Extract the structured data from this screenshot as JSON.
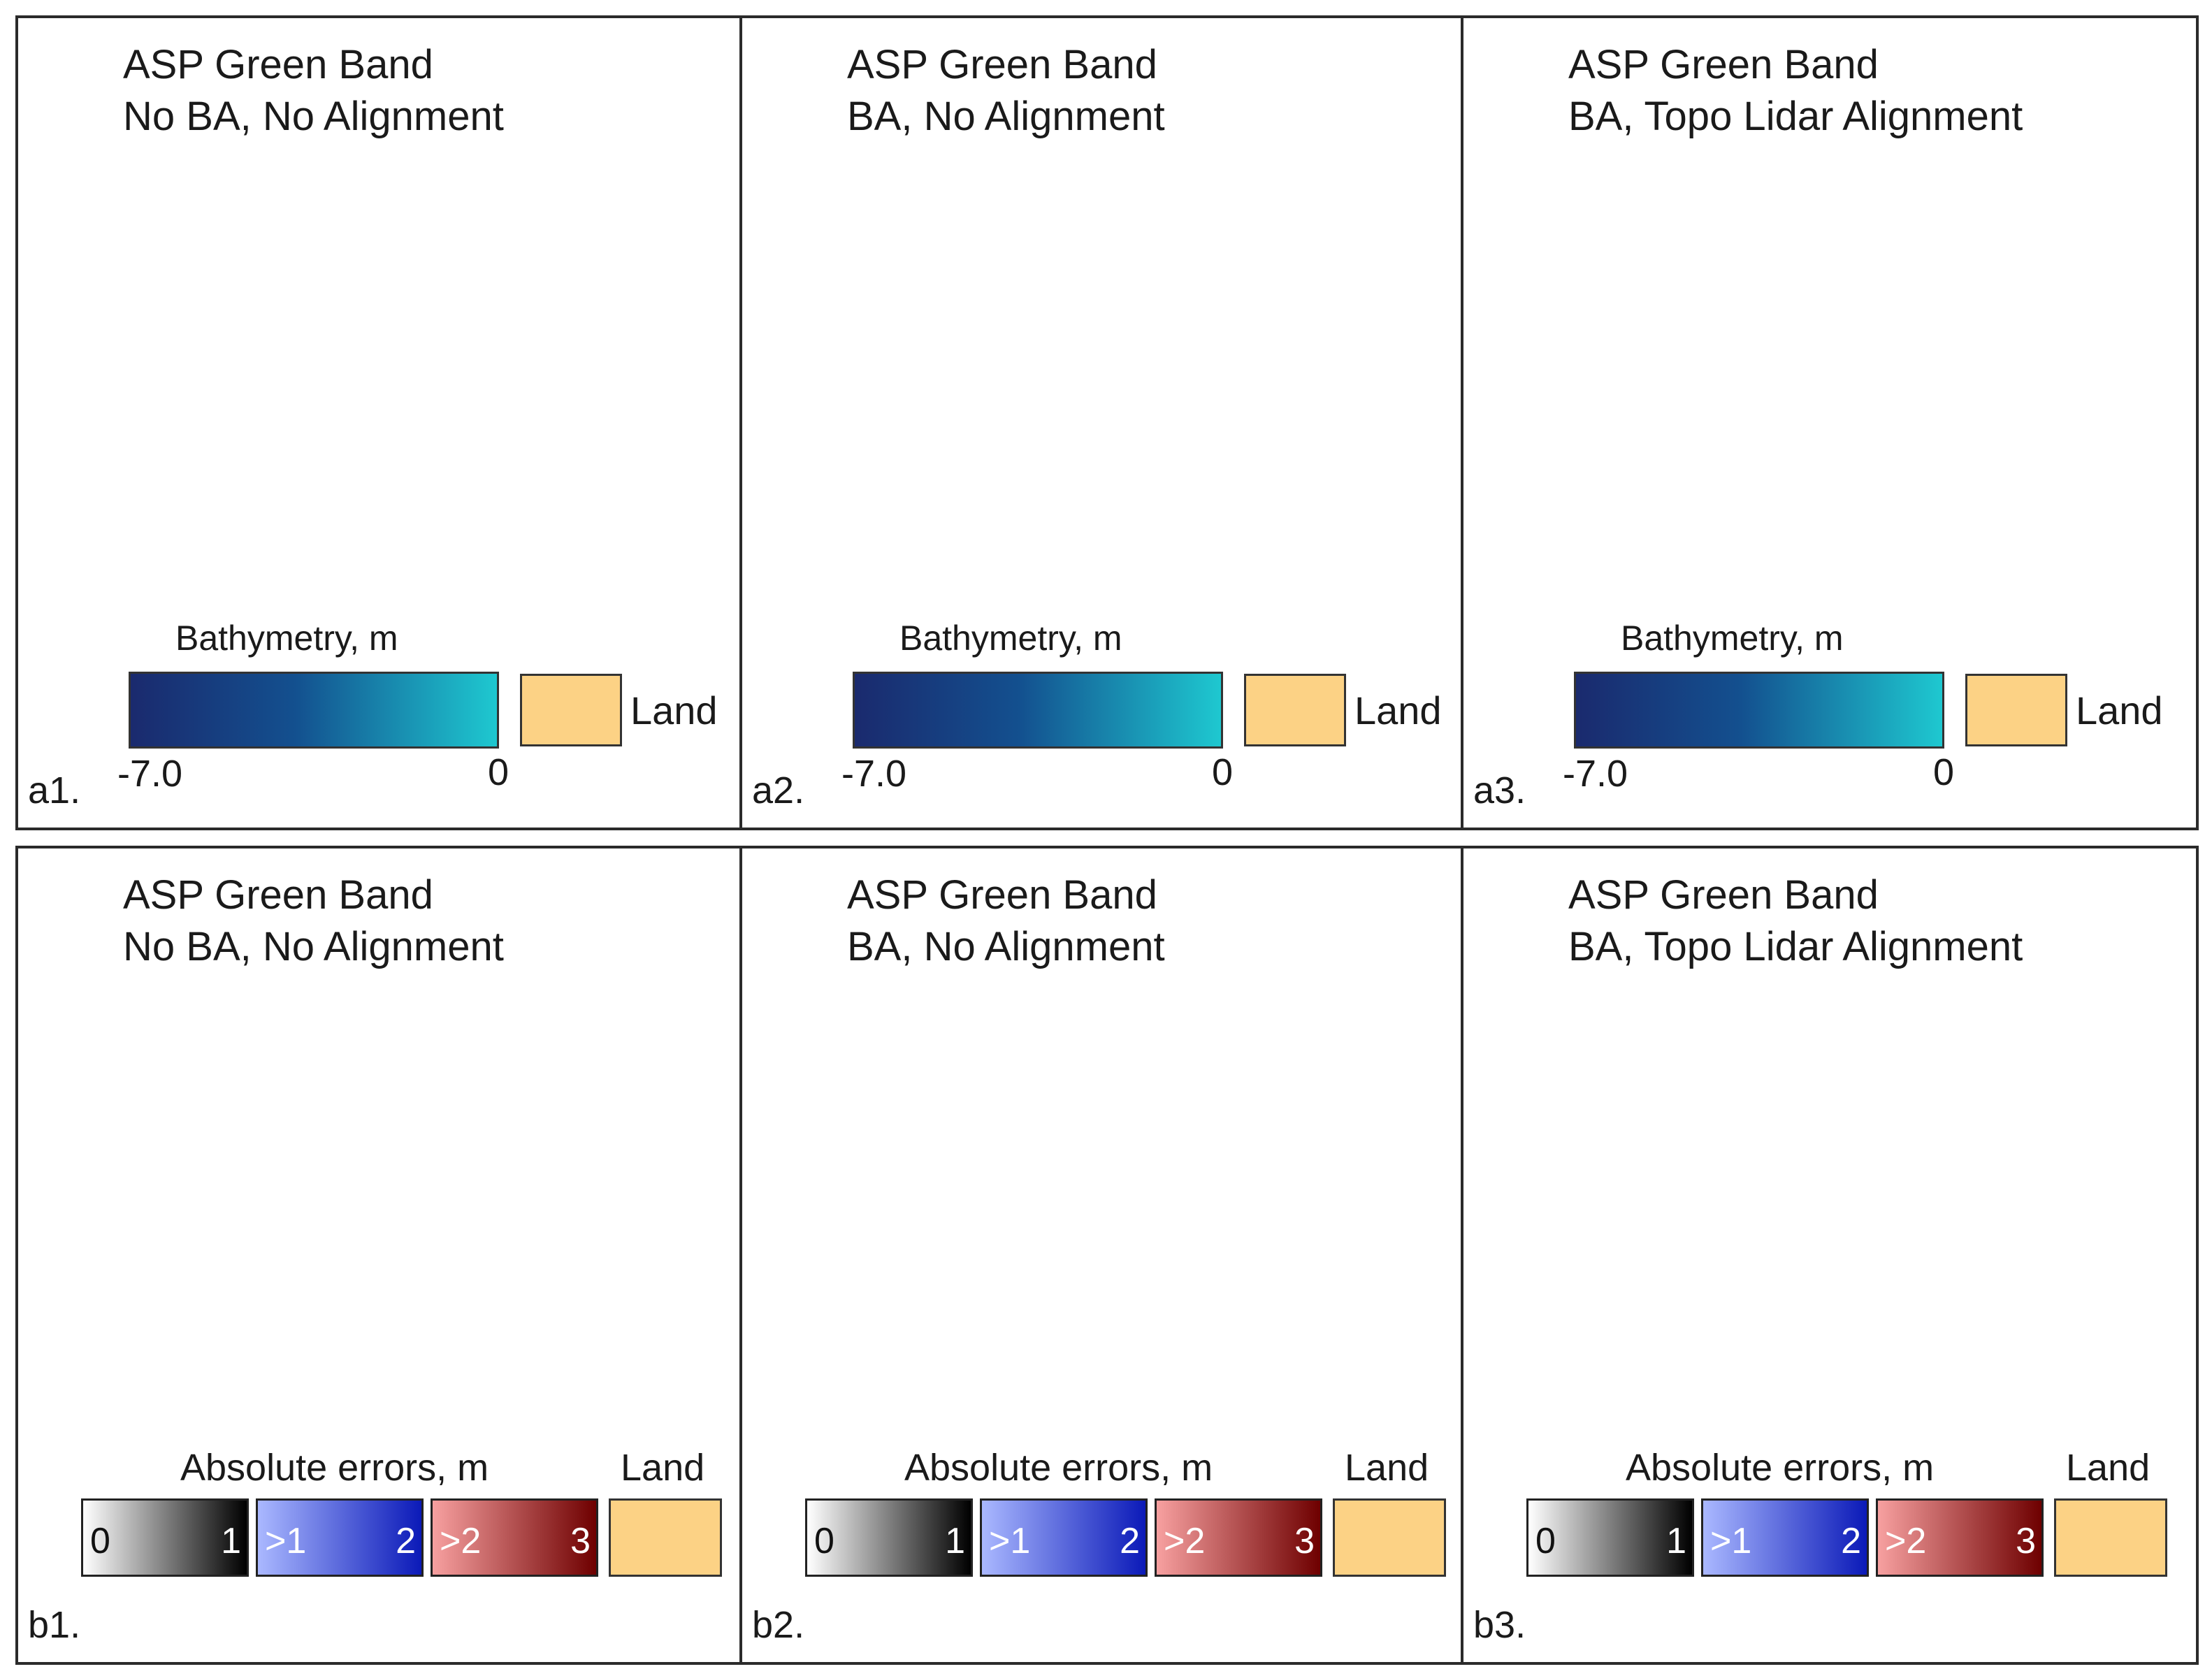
{
  "colors": {
    "land": "#fcd285",
    "bathy_deep": "#1a2a6e",
    "bathy_shallow": "#1ec8d0",
    "err_gray": [
      "#ffffff",
      "#000000"
    ],
    "err_blue": [
      "#aab8ff",
      "#0b1ab8"
    ],
    "err_red": [
      "#f7a0a0",
      "#6e0000"
    ]
  },
  "top_row": {
    "legend_title": "Bathymetry, m",
    "tick_min": "-7.0",
    "tick_max": "0",
    "land_label": "Land",
    "panels": [
      {
        "line1": "ASP Green Band",
        "line2": "No BA, No Alignment",
        "letter": "a1."
      },
      {
        "line1": "ASP Green Band",
        "line2": "BA, No Alignment",
        "letter": "a2."
      },
      {
        "line1": "ASP Green Band",
        "line2": "BA, Topo Lidar Alignment",
        "letter": "a3."
      }
    ]
  },
  "bottom_row": {
    "legend_title": "Absolute errors, m",
    "land_label": "Land",
    "gray_min": "0",
    "gray_max": "1",
    "blue_min": ">1",
    "blue_max": "2",
    "red_min": ">2",
    "red_max": "3",
    "panels": [
      {
        "line1": "ASP Green Band",
        "line2": "No BA, No Alignment",
        "letter": "b1."
      },
      {
        "line1": "ASP Green Band",
        "line2": "BA, No Alignment",
        "letter": "b2."
      },
      {
        "line1": "ASP Green Band",
        "line2": "BA, Topo Lidar Alignment",
        "letter": "b3."
      }
    ]
  }
}
